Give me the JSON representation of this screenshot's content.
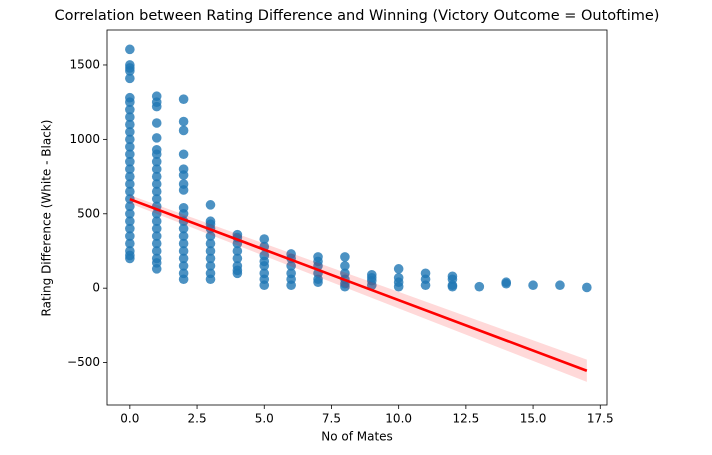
{
  "chart_data": {
    "type": "scatter",
    "title": "Correlation between Rating Difference and Winning (Victory Outcome = Outoftime)",
    "x_label": "No of Mates",
    "y_label": "Rating Difference (White - Black)",
    "color": "#1f77b4",
    "x": [
      0,
      0,
      0,
      0,
      0,
      0,
      0,
      0,
      0,
      0,
      0,
      0,
      0,
      0,
      0,
      0,
      0,
      0,
      0,
      0,
      0,
      0,
      0,
      0,
      0,
      0,
      0,
      0,
      0,
      1,
      1,
      1,
      1,
      1,
      1,
      1,
      1,
      1,
      1,
      1,
      1,
      1,
      1,
      1,
      1,
      1,
      1,
      1,
      1,
      1,
      1,
      1,
      2,
      2,
      2,
      2,
      2,
      2,
      2,
      2,
      2,
      2,
      2,
      2,
      2,
      2,
      2,
      2,
      2,
      2,
      2,
      3,
      3,
      3,
      3,
      3,
      3,
      3,
      3,
      3,
      3,
      3,
      4,
      4,
      4,
      4,
      4,
      4,
      4,
      4,
      5,
      5,
      5,
      5,
      5,
      5,
      5,
      5,
      6,
      6,
      6,
      6,
      6,
      6,
      7,
      7,
      7,
      7,
      7,
      7,
      8,
      8,
      8,
      8,
      8,
      8,
      9,
      9,
      9,
      9,
      10,
      10,
      10,
      10,
      11,
      11,
      11,
      12,
      12,
      12,
      12,
      13,
      14,
      14,
      15,
      16,
      17
    ],
    "values": [
      1605,
      1500,
      1480,
      1460,
      1410,
      1280,
      1250,
      1200,
      1150,
      1100,
      1050,
      1000,
      950,
      900,
      850,
      800,
      750,
      700,
      650,
      600,
      550,
      500,
      450,
      400,
      350,
      300,
      250,
      220,
      200,
      1290,
      1250,
      1220,
      1110,
      1010,
      930,
      900,
      850,
      800,
      750,
      700,
      650,
      600,
      550,
      500,
      450,
      400,
      350,
      300,
      250,
      200,
      170,
      130,
      1270,
      1120,
      1060,
      900,
      800,
      760,
      700,
      660,
      540,
      500,
      450,
      400,
      350,
      300,
      250,
      200,
      150,
      100,
      60,
      560,
      450,
      430,
      400,
      350,
      300,
      250,
      200,
      150,
      100,
      60,
      360,
      340,
      300,
      250,
      200,
      150,
      120,
      100,
      330,
      280,
      220,
      180,
      150,
      100,
      60,
      20,
      230,
      200,
      150,
      100,
      60,
      20,
      210,
      180,
      150,
      100,
      60,
      40,
      210,
      150,
      100,
      60,
      30,
      10,
      90,
      70,
      50,
      20,
      130,
      70,
      40,
      10,
      100,
      60,
      20,
      80,
      60,
      20,
      10,
      10,
      40,
      30,
      20,
      20,
      5
    ],
    "regression": {
      "color": "#ff0000",
      "x": [
        0,
        17
      ],
      "values": [
        598,
        -555
      ],
      "lower": [
        570,
        -630
      ],
      "upper": [
        625,
        -480
      ]
    },
    "xlim": [
      -0.85,
      17.75
    ],
    "ylim": [
      -785,
      1735
    ],
    "xticks": [
      {
        "value": 0,
        "label": "0.0"
      },
      {
        "value": 2.5,
        "label": "2.5"
      },
      {
        "value": 5,
        "label": "5.0"
      },
      {
        "value": 7.5,
        "label": "7.5"
      },
      {
        "value": 10,
        "label": "10.0"
      },
      {
        "value": 12.5,
        "label": "12.5"
      },
      {
        "value": 15,
        "label": "15.0"
      },
      {
        "value": 17.5,
        "label": "17.5"
      }
    ],
    "yticks": [
      {
        "value": -500,
        "label": "−500"
      },
      0,
      500,
      1000,
      1500
    ]
  }
}
